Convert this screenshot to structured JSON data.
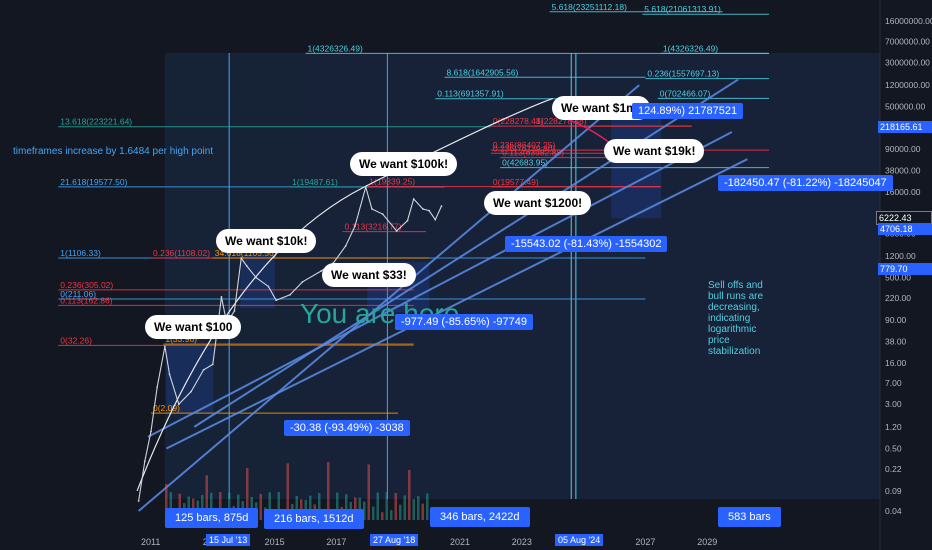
{
  "chart_data": {
    "type": "line",
    "title": "",
    "xlabel": "",
    "ylabel": "",
    "yscale": "log",
    "grid": false,
    "legend": "none",
    "x_ticks": [
      "2011",
      "2013",
      "2015",
      "2017",
      "2019",
      "2021",
      "2023",
      "2025",
      "2027",
      "2029"
    ],
    "y_ticks": [
      "16000000.00",
      "7000000.00",
      "3000000.00",
      "1200000.00",
      "500000.00",
      "220000.00",
      "90000.00",
      "38000.00",
      "16000.00",
      "6222.43",
      "3000.00",
      "1200.00",
      "500.00",
      "220.00",
      "90.00",
      "38.00",
      "16.00",
      "7.00",
      "3.00",
      "1.20",
      "0.50",
      "0.22",
      "0.09",
      "0.04"
    ],
    "price_tags": [
      {
        "label": "218165.61",
        "color": "#2962ff"
      },
      {
        "label": "6222.43",
        "color": "#131722"
      },
      {
        "label": "4706.18",
        "color": "#2962ff"
      },
      {
        "label": "779.70",
        "color": "#2962ff"
      }
    ],
    "time_tags": [
      {
        "label": "15 Jul '13"
      },
      {
        "label": "27 Aug '18"
      },
      {
        "label": "05 Aug '24"
      }
    ],
    "price_series": [
      {
        "x": 2010.6,
        "y": 0.06
      },
      {
        "x": 2010.8,
        "y": 0.3
      },
      {
        "x": 2011.0,
        "y": 1.0
      },
      {
        "x": 2011.2,
        "y": 6
      },
      {
        "x": 2011.45,
        "y": 31
      },
      {
        "x": 2011.6,
        "y": 10
      },
      {
        "x": 2011.9,
        "y": 3
      },
      {
        "x": 2012.3,
        "y": 5
      },
      {
        "x": 2012.7,
        "y": 12
      },
      {
        "x": 2013.0,
        "y": 15
      },
      {
        "x": 2013.28,
        "y": 230
      },
      {
        "x": 2013.45,
        "y": 80
      },
      {
        "x": 2013.7,
        "y": 130
      },
      {
        "x": 2013.92,
        "y": 1100
      },
      {
        "x": 2014.1,
        "y": 800
      },
      {
        "x": 2014.4,
        "y": 500
      },
      {
        "x": 2014.8,
        "y": 350
      },
      {
        "x": 2015.05,
        "y": 200
      },
      {
        "x": 2015.5,
        "y": 250
      },
      {
        "x": 2015.9,
        "y": 420
      },
      {
        "x": 2016.5,
        "y": 650
      },
      {
        "x": 2016.9,
        "y": 900
      },
      {
        "x": 2017.3,
        "y": 1800
      },
      {
        "x": 2017.6,
        "y": 4000
      },
      {
        "x": 2017.95,
        "y": 19500
      },
      {
        "x": 2018.15,
        "y": 8000
      },
      {
        "x": 2018.5,
        "y": 6500
      },
      {
        "x": 2018.95,
        "y": 3300
      },
      {
        "x": 2019.3,
        "y": 5000
      },
      {
        "x": 2019.5,
        "y": 12000
      },
      {
        "x": 2019.8,
        "y": 8000
      },
      {
        "x": 2020.0,
        "y": 7500
      },
      {
        "x": 2020.2,
        "y": 5200
      },
      {
        "x": 2020.4,
        "y": 9000
      }
    ],
    "fib_levels": [
      {
        "label": "5.618(23251112.18)",
        "price": 23251112.18,
        "color": "#4dd0e1",
        "from": 2023.9,
        "to": 2029.5
      },
      {
        "label": "5.618(21061313.91)",
        "price": 21061313.91,
        "color": "#4dd0e1",
        "from": 2026.9,
        "to": 2031.0
      },
      {
        "label": "1(4326326.49)",
        "price": 4326326.49,
        "color": "#4dd0e1",
        "from": 2016.0,
        "to": 2031.0
      },
      {
        "label": "1(4326326.49)",
        "price": 4326326.49,
        "color": "#4dd0e1",
        "from": 2027.5,
        "to": 2031.0
      },
      {
        "label": "8.618(1642905.56)",
        "price": 1642905.56,
        "color": "#4dd0e1",
        "from": 2020.5,
        "to": 2027.0
      },
      {
        "label": "0.236(1557697.13)",
        "price": 1557697.13,
        "color": "#4dd0e1",
        "from": 2027.0,
        "to": 2031.0
      },
      {
        "label": "0.113(691357.91)",
        "price": 691357.91,
        "color": "#4dd0e1",
        "from": 2020.2,
        "to": 2026.9
      },
      {
        "label": "0(702466.07)",
        "price": 702466.07,
        "color": "#4dd0e1",
        "from": 2027.4,
        "to": 2031.0
      },
      {
        "label": "13.618(223221.64)",
        "price": 223221.64,
        "color": "#26a69a",
        "from": 2008.0,
        "to": 2022.0
      },
      {
        "label": "0(228278.48)",
        "price": 228278.48,
        "color": "#f23645",
        "from": 2022.0,
        "to": 2028.5
      },
      {
        "label": "1(228278.48)",
        "price": 228278.48,
        "color": "#f23645",
        "from": 2023.4,
        "to": 2028.5
      },
      {
        "label": "0.236(86407.25)",
        "price": 86407.25,
        "color": "#f23645",
        "from": 2022.0,
        "to": 2031.0
      },
      {
        "label": "0.236(76139.80)",
        "price": 76139.8,
        "color": "#f23645",
        "from": 2022.0,
        "to": 2027.5
      },
      {
        "label": "0.113(63982.88)",
        "price": 63982.88,
        "color": "#f23645",
        "from": 2022.3,
        "to": 2027.5
      },
      {
        "label": "0(42683.95)",
        "price": 42683.95,
        "color": "#4dd0e1",
        "from": 2022.3,
        "to": 2031.0
      },
      {
        "label": "21.618(19577.50)",
        "price": 19577.5,
        "color": "#42a5f5",
        "from": 2008.0,
        "to": 2020.5
      },
      {
        "label": "1(19487.61)",
        "price": 19487.61,
        "color": "#26a69a",
        "from": 2015.5,
        "to": 2018.0
      },
      {
        "label": "1(19839.25)",
        "price": 19839.25,
        "color": "#f23645",
        "from": 2018.0,
        "to": 2027.5
      },
      {
        "label": "0(19577.49)",
        "price": 19577.49,
        "color": "#f23645",
        "from": 2022.0,
        "to": 2027.5
      },
      {
        "label": "0.113(3216.77)",
        "price": 3216.77,
        "color": "#f23645",
        "from": 2017.2,
        "to": 2019.9
      },
      {
        "label": "1(1106.33)",
        "price": 1106.33,
        "color": "#42a5f5",
        "from": 2008.0,
        "to": 2027.0
      },
      {
        "label": "0.236(1108.02)",
        "price": 1108.02,
        "color": "#f23645",
        "from": 2011.0,
        "to": 2016.5
      },
      {
        "label": "34.618(1105.56)",
        "price": 1105.56,
        "color": "#ff9800",
        "from": 2013.0,
        "to": 2020.0
      },
      {
        "label": "0.236(305.02)",
        "price": 305.02,
        "color": "#f23645",
        "from": 2008.0,
        "to": 2019.5
      },
      {
        "label": "0(211.06)",
        "price": 211.06,
        "color": "#42a5f5",
        "from": 2008.0,
        "to": 2027.0
      },
      {
        "label": "0.113(162.86)",
        "price": 162.86,
        "color": "#f23645",
        "from": 2008.0,
        "to": 2019.5
      },
      {
        "label": "0(32.26)",
        "price": 32.26,
        "color": "#f23645",
        "from": 2008.0,
        "to": 2019.5
      },
      {
        "label": "1(33.96)",
        "price": 33.96,
        "color": "#ff9800",
        "from": 2011.4,
        "to": 2019.5
      },
      {
        "label": "0(2.09)",
        "price": 2.09,
        "color": "#ff9800",
        "from": 2011.0,
        "to": 2019.0
      }
    ],
    "boxes": [
      {
        "label": "-182450.47 (-81.22%) -18245047",
        "x_from": 2025.9,
        "x_to": 2027.5
      },
      {
        "label": "-15543.02 (-81.43%) -1554302",
        "x_from": 2018.0,
        "x_to": 2020.0
      },
      {
        "label": "-977.49 (-85.65%) -97749",
        "x_from": 2013.9,
        "x_to": 2015.0
      },
      {
        "label": "-30.38 (-93.49%) -3038",
        "x_from": 2011.5,
        "x_to": 2013.0
      }
    ],
    "bar_labels": [
      {
        "label": "125 bars, 875d"
      },
      {
        "label": "216 bars, 1512d"
      },
      {
        "label": "346 bars, 2422d"
      },
      {
        "label": "583 bars"
      }
    ],
    "bubbles": [
      {
        "label": "We want $1m!"
      },
      {
        "label": "We want $19k!"
      },
      {
        "label": "We want $100k!"
      },
      {
        "label": "We want $1200!"
      },
      {
        "label": "We want $10k!"
      },
      {
        "label": "We want $33!"
      },
      {
        "label": "We want $100"
      }
    ],
    "annotations": [
      {
        "label": "124.89%) 21787521"
      }
    ]
  },
  "notes": {
    "timeframes": "timeframes increase by 1.6484 per high point",
    "sell_offs": "Sell offs and bull runs are decreasing, indicating logarithmic price stabilization",
    "you_are_here": "You are here"
  }
}
